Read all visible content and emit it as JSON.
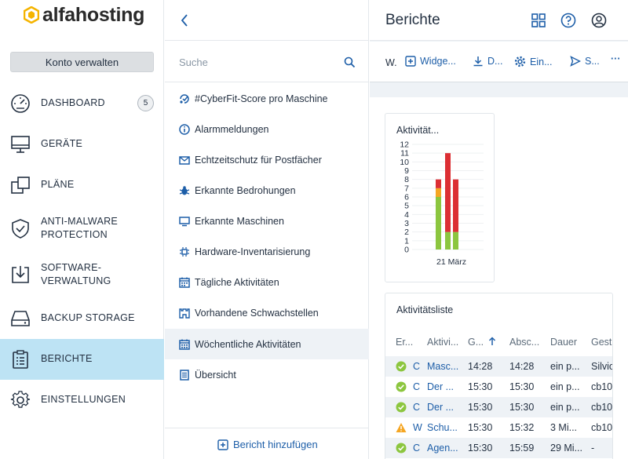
{
  "brand": {
    "name": "alfahosting"
  },
  "sidebar": {
    "account_button": "Konto verwalten",
    "items": [
      {
        "label": "DASHBOARD",
        "icon": "dashboard-icon",
        "badge": "5"
      },
      {
        "label": "GERÄTE",
        "icon": "monitor-icon"
      },
      {
        "label": "PLÄNE",
        "icon": "plans-icon"
      },
      {
        "label": "ANTI-MALWARE PROTECTION",
        "icon": "shield-icon"
      },
      {
        "label": "SOFTWARE-VERWALTUNG",
        "icon": "software-install-icon"
      },
      {
        "label": "BACKUP STORAGE",
        "icon": "storage-icon"
      },
      {
        "label": "BERICHTE",
        "icon": "reports-clipboard-icon",
        "active": true
      },
      {
        "label": "EINSTELLUNGEN",
        "icon": "gear-icon"
      }
    ]
  },
  "reports_panel": {
    "search_placeholder": "Suche",
    "items": [
      {
        "label": "#CyberFit-Score pro Maschine",
        "icon": "cyberfit-icon"
      },
      {
        "label": "Alarmmeldungen",
        "icon": "info-circle-icon"
      },
      {
        "label": "Echtzeitschutz für Postfächer",
        "icon": "mail-icon"
      },
      {
        "label": "Erkannte Bedrohungen",
        "icon": "bug-icon"
      },
      {
        "label": "Erkannte Maschinen",
        "icon": "monitor-small-icon"
      },
      {
        "label": "Hardware-Inventarisierung",
        "icon": "chip-icon"
      },
      {
        "label": "Tägliche Aktivitäten",
        "icon": "calendar-icon"
      },
      {
        "label": "Vorhandene Schwachstellen",
        "icon": "castle-icon"
      },
      {
        "label": "Wöchentliche Aktivitäten",
        "icon": "calendar-week-icon",
        "selected": true
      },
      {
        "label": "Übersicht",
        "icon": "document-icon"
      }
    ],
    "add_report": "Bericht hinzufügen"
  },
  "main": {
    "title": "Berichte",
    "toolbar": {
      "w_label": "W.",
      "widget_label": "Widge...",
      "download_label": "D...",
      "settings_label": "Ein...",
      "send_label": "S...",
      "more_label": "···"
    },
    "activity_widget": {
      "title": "Aktivität..."
    },
    "activity_list": {
      "title": "Aktivitätsliste",
      "columns": [
        "Er...",
        "Aktivi...",
        "G...",
        "Absc...",
        "Dauer",
        "Gest..."
      ],
      "rows": [
        {
          "status": "ok",
          "c": "C",
          "activity": "Masc...",
          "start": "14:28",
          "end": "14:28",
          "duration": "ein p...",
          "by": "Silvio"
        },
        {
          "status": "ok",
          "c": "C",
          "activity": "Der ...",
          "start": "15:30",
          "end": "15:30",
          "duration": "ein p...",
          "by": "cb10"
        },
        {
          "status": "ok",
          "c": "C",
          "activity": "Der ...",
          "start": "15:30",
          "end": "15:30",
          "duration": "ein p...",
          "by": "cb10"
        },
        {
          "status": "warning",
          "c": "W",
          "activity": "Schu...",
          "start": "15:30",
          "end": "15:32",
          "duration": "3 Mi...",
          "by": "cb10"
        },
        {
          "status": "ok",
          "c": "C",
          "activity": "Agen...",
          "start": "15:30",
          "end": "15:59",
          "duration": "29 Mi...",
          "by": "-"
        }
      ]
    }
  },
  "chart_data": {
    "type": "bar",
    "title": "Aktivität...",
    "categories": [
      "21 März"
    ],
    "ylim": [
      0,
      12
    ],
    "yticks": [
      0,
      1,
      2,
      3,
      4,
      5,
      6,
      7,
      8,
      9,
      10,
      11,
      12
    ],
    "stacked": true,
    "bars": [
      {
        "segments": [
          {
            "color": "#8cc63f",
            "value": 6
          },
          {
            "color": "#f5a623",
            "value": 1
          },
          {
            "color": "#dc2f34",
            "value": 1
          }
        ]
      },
      {
        "segments": [
          {
            "color": "#8cc63f",
            "value": 2
          },
          {
            "color": "#dc2f34",
            "value": 9
          }
        ]
      },
      {
        "segments": [
          {
            "color": "#8cc63f",
            "value": 2
          },
          {
            "color": "#dc2f34",
            "value": 6
          }
        ]
      }
    ],
    "colors": {
      "success": "#8cc63f",
      "warning": "#f5a623",
      "error": "#dc2f34"
    }
  }
}
